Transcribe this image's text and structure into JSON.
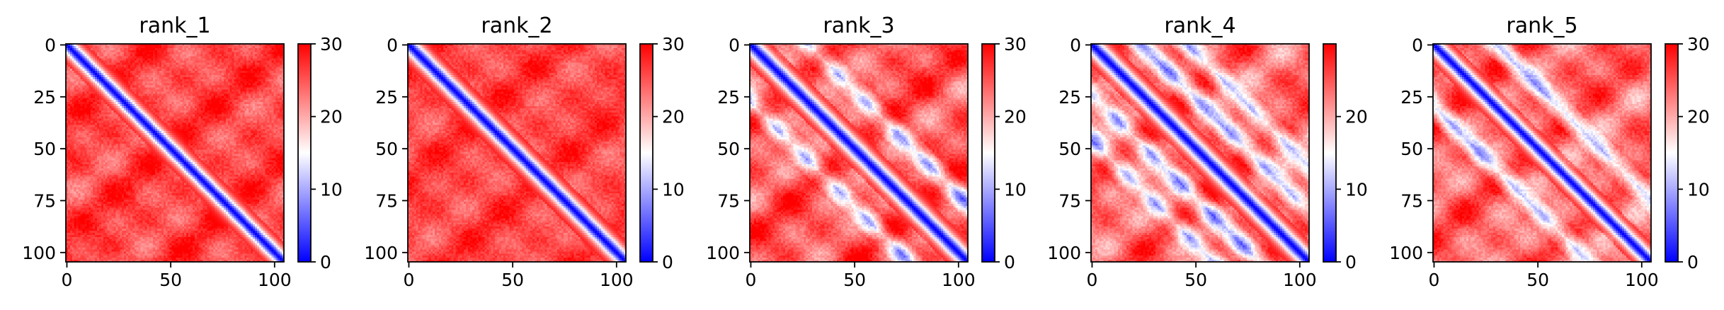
{
  "chart_data": [
    {
      "type": "heatmap",
      "title": "rank_1",
      "n": 105,
      "xlim": [
        0,
        104
      ],
      "ylim": [
        104,
        0
      ],
      "xticks": [
        0,
        50,
        100
      ],
      "yticks": [
        0,
        25,
        50,
        75,
        100
      ],
      "colorbar": {
        "min": 0,
        "max": 30,
        "ticks": [
          0,
          10,
          20,
          30
        ],
        "colormap": "bwr"
      },
      "pattern": {
        "diag_width": 3.2,
        "off_diagonal_bands": [],
        "base_level": 26,
        "variation": 3
      }
    },
    {
      "type": "heatmap",
      "title": "rank_2",
      "n": 105,
      "xlim": [
        0,
        104
      ],
      "ylim": [
        104,
        0
      ],
      "xticks": [
        0,
        50,
        100
      ],
      "yticks": [
        0,
        25,
        50,
        75,
        100
      ],
      "colorbar": {
        "min": 0,
        "max": 30,
        "ticks": [
          0,
          10,
          20,
          30
        ],
        "colormap": "bwr"
      },
      "pattern": {
        "diag_width": 3.4,
        "off_diagonal_bands": [],
        "base_level": 26,
        "variation": 2.5
      }
    },
    {
      "type": "heatmap",
      "title": "rank_3",
      "n": 105,
      "xlim": [
        0,
        104
      ],
      "ylim": [
        104,
        0
      ],
      "xticks": [
        0,
        50,
        100
      ],
      "yticks": [
        0,
        25,
        50,
        75,
        100
      ],
      "colorbar": {
        "min": 0,
        "max": 30,
        "ticks": [
          0,
          10,
          20,
          30
        ],
        "colormap": "bwr"
      },
      "pattern": {
        "diag_width": 3.6,
        "off_diagonal_bands": [
          28,
          -28
        ],
        "base_level": 25,
        "variation": 4
      }
    },
    {
      "type": "heatmap",
      "title": "rank_4",
      "n": 105,
      "xlim": [
        0,
        104
      ],
      "ylim": [
        104,
        0
      ],
      "xticks": [
        0,
        50,
        100
      ],
      "yticks": [
        0,
        25,
        50,
        75,
        100
      ],
      "colorbar": {
        "min": 0,
        "max": 30,
        "ticks": [
          0,
          10,
          20
        ],
        "colormap": "bwr"
      },
      "pattern": {
        "diag_width": 3.6,
        "off_diagonal_bands": [
          24,
          -24,
          46,
          -46
        ],
        "base_level": 24,
        "variation": 4
      }
    },
    {
      "type": "heatmap",
      "title": "rank_5",
      "n": 105,
      "xlim": [
        0,
        104
      ],
      "ylim": [
        104,
        0
      ],
      "xticks": [
        0,
        50,
        100
      ],
      "yticks": [
        0,
        25,
        50,
        75,
        100
      ],
      "colorbar": {
        "min": 0,
        "max": 30,
        "ticks": [
          0,
          10,
          20,
          30
        ],
        "colormap": "bwr"
      },
      "pattern": {
        "diag_width": 3.3,
        "off_diagonal_bands": [
          30,
          -30
        ],
        "base_level": 24,
        "variation": 4
      }
    }
  ],
  "colors": {
    "low": "#0000ff",
    "mid": "#ffffff",
    "high": "#ff0000"
  }
}
